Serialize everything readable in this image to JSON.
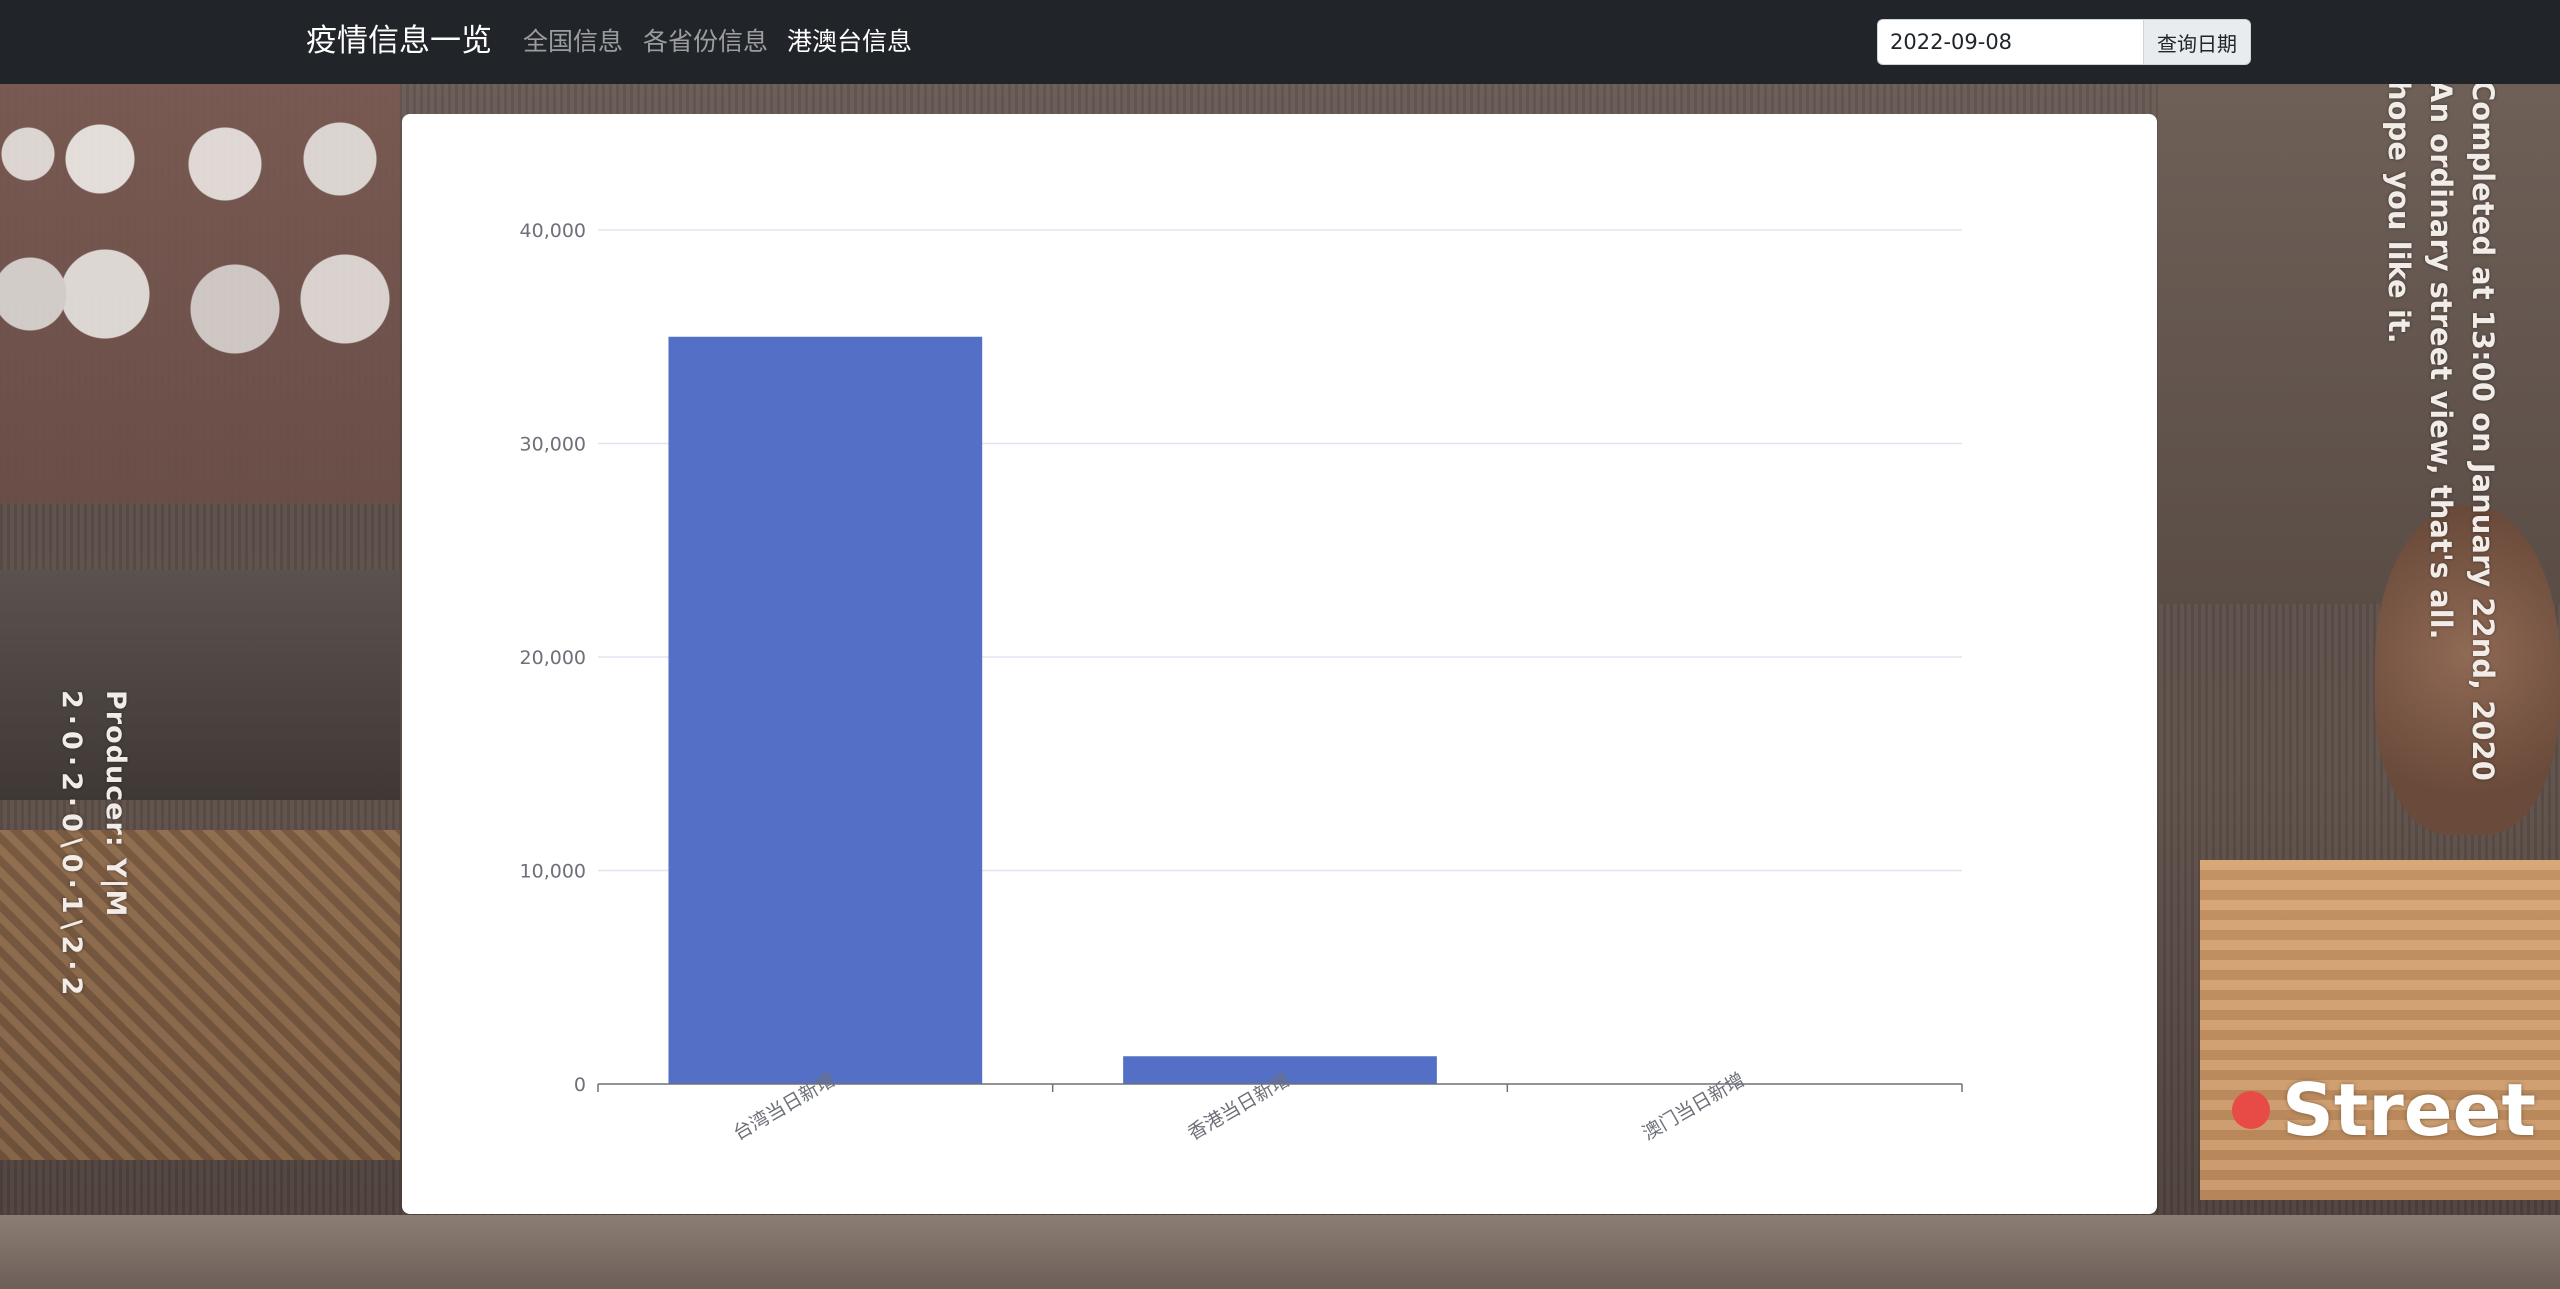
{
  "navbar": {
    "brand": "疫情信息一览",
    "links": [
      {
        "label": "全国信息",
        "active": false
      },
      {
        "label": "各省份信息",
        "active": false
      },
      {
        "label": "港澳台信息",
        "active": true
      }
    ],
    "date_value": "2022-09-08",
    "query_label": "查询日期"
  },
  "background": {
    "producer": "Producer: Y|M",
    "producer_date": "2·0·2·0\\0·1\\2·2",
    "right_lines": [
      "Completed at 13:00 on January 22nd, 2020",
      "An ordinary street view, that's all.",
      "hope you like it."
    ],
    "street_label": "Street"
  },
  "chart_data": {
    "type": "bar",
    "categories": [
      "台湾当日新增",
      "香港当日新增",
      "澳门当日新增"
    ],
    "values": [
      35000,
      1300,
      0
    ],
    "ylim": [
      0,
      40000
    ],
    "yticks": [
      0,
      10000,
      20000,
      30000,
      40000
    ],
    "ytick_labels": [
      "0",
      "10,000",
      "20,000",
      "30,000",
      "40,000"
    ],
    "bar_color": "#5470c6",
    "grid": true,
    "title": "",
    "xlabel": "",
    "ylabel": ""
  }
}
